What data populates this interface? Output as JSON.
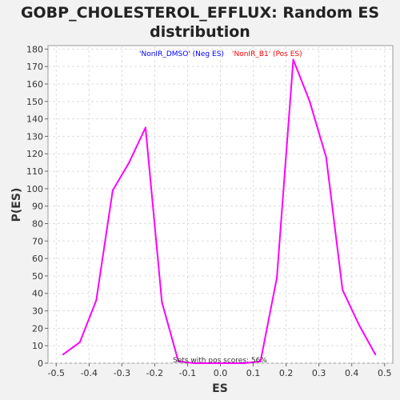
{
  "chart_data": {
    "type": "line",
    "title_line1": "GOBP_CHOLESTEROL_EFFLUX: Random ES",
    "title_line2": "distribution",
    "xlabel": "ES",
    "ylabel": "P(ES)",
    "xlim": [
      -0.525,
      0.525
    ],
    "ylim": [
      0,
      182
    ],
    "x_ticks": [
      -0.5,
      -0.4,
      -0.3,
      -0.2,
      -0.1,
      0.0,
      0.1,
      0.2,
      0.3,
      0.4,
      0.5
    ],
    "x_tick_labels": [
      "-0.5",
      "-0.4",
      "-0.3",
      "-0.2",
      "-0.1",
      "0.0",
      "0.1",
      "0.2",
      "0.3",
      "0.4",
      "0.5"
    ],
    "y_ticks": [
      0,
      10,
      20,
      30,
      40,
      50,
      60,
      70,
      80,
      90,
      100,
      110,
      120,
      130,
      140,
      150,
      160,
      170,
      180
    ],
    "y_tick_labels": [
      "0",
      "10",
      "20",
      "30",
      "40",
      "50",
      "60",
      "70",
      "80",
      "90",
      "100",
      "110",
      "120",
      "130",
      "140",
      "150",
      "160",
      "170",
      "180"
    ],
    "grid": true,
    "legend": [
      {
        "label": "'NonIR_DMSO' (Neg ES)",
        "color": "#0000ff"
      },
      {
        "label": "'NonIR_B1' (Pos ES)",
        "color": "#ff0000"
      }
    ],
    "annotation": "Sets with pos scores: 56%",
    "line_color": "#ff00ff",
    "series": [
      {
        "x": [
          -0.479,
          -0.428,
          -0.378,
          -0.328,
          -0.278,
          -0.228,
          -0.178,
          -0.128,
          -0.078,
          -0.028,
          0.022,
          0.072,
          0.122,
          0.172,
          0.222,
          0.272,
          0.322,
          0.372,
          0.422,
          0.472
        ],
        "y": [
          5,
          12,
          36,
          99,
          115,
          135,
          35,
          1,
          0,
          0,
          0,
          0,
          1,
          49,
          174,
          150,
          118,
          42,
          22,
          5
        ]
      }
    ]
  }
}
